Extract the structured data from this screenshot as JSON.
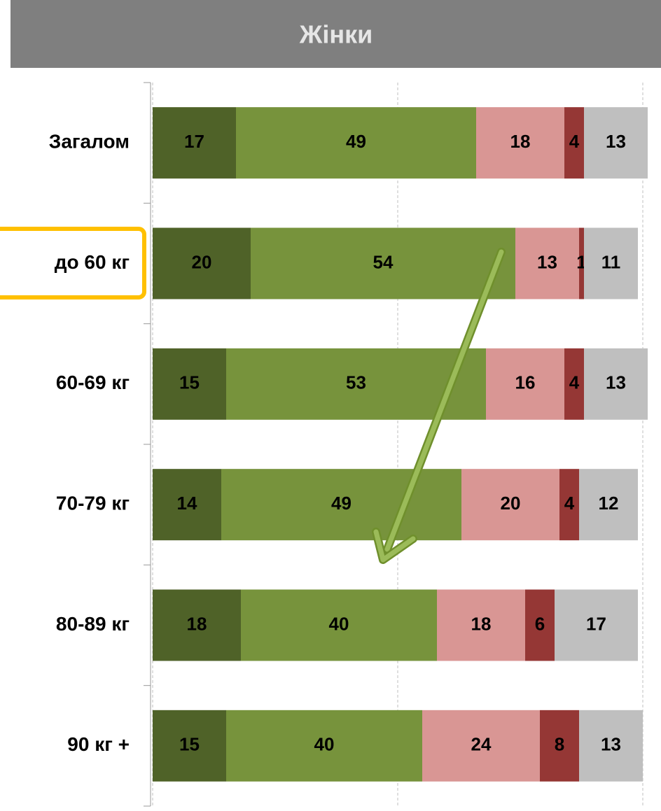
{
  "chart_data": {
    "type": "stacked-bar-horizontal",
    "title": "Жінки",
    "categories": [
      "Загалом",
      "до 60 кг",
      "60-69 кг",
      "70-79 кг",
      "80-89 кг",
      "90 кг +"
    ],
    "series": [
      {
        "color": "#4f6228",
        "values": [
          17,
          20,
          15,
          14,
          18,
          15
        ]
      },
      {
        "color": "#77933c",
        "values": [
          49,
          54,
          53,
          49,
          40,
          40
        ]
      },
      {
        "color": "#d99694",
        "values": [
          18,
          13,
          16,
          20,
          18,
          24
        ]
      },
      {
        "color": "#953735",
        "values": [
          4,
          1,
          4,
          4,
          6,
          8
        ]
      },
      {
        "color": "#bfbfbf",
        "values": [
          13,
          11,
          13,
          12,
          17,
          13
        ]
      }
    ],
    "xlim": [
      0,
      100
    ],
    "xticks": [
      0,
      50,
      100
    ],
    "grid": true
  }
}
